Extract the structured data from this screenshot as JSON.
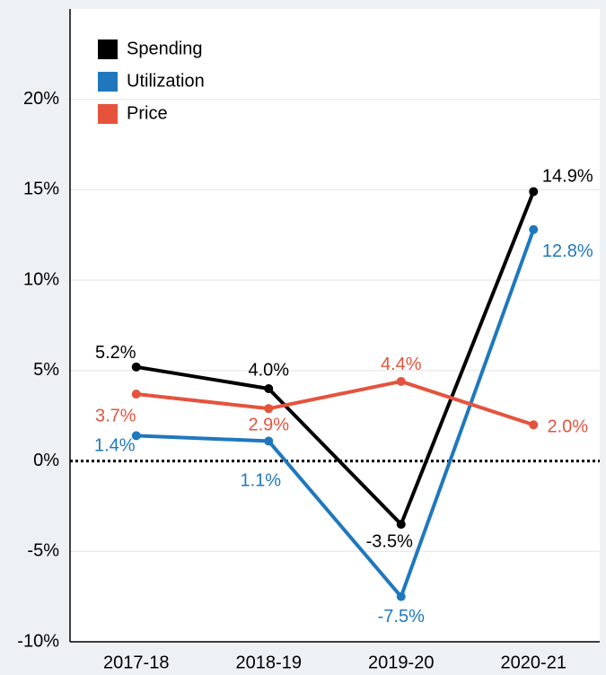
{
  "chart_data": {
    "type": "line",
    "categories": [
      "2017-18",
      "2018-19",
      "2019-20",
      "2020-21"
    ],
    "series": [
      {
        "name": "Spending",
        "color": "#000000",
        "values": [
          5.2,
          4.0,
          -3.5,
          14.9
        ],
        "value_labels": [
          "5.2%",
          "4.0%",
          "-3.5%",
          "14.9%"
        ]
      },
      {
        "name": "Utilization",
        "color": "#1f78be",
        "values": [
          1.4,
          1.1,
          -7.5,
          12.8
        ],
        "value_labels": [
          "1.4%",
          "1.1%",
          "-7.5%",
          "12.8%"
        ]
      },
      {
        "name": "Price",
        "color": "#e5533d",
        "values": [
          3.7,
          2.9,
          4.4,
          2.0
        ],
        "value_labels": [
          "3.7%",
          "2.9%",
          "4.4%",
          "2.0%"
        ]
      }
    ],
    "ylim": [
      -10,
      25
    ],
    "yticks": [
      {
        "value": -10,
        "label": "-10%"
      },
      {
        "value": -5,
        "label": "-5%"
      },
      {
        "value": 0,
        "label": "0%"
      },
      {
        "value": 5,
        "label": "5%"
      },
      {
        "value": 10,
        "label": "10%"
      },
      {
        "value": 15,
        "label": "15%"
      },
      {
        "value": 20,
        "label": "20%"
      }
    ],
    "grid": true,
    "legend": "top-left"
  }
}
